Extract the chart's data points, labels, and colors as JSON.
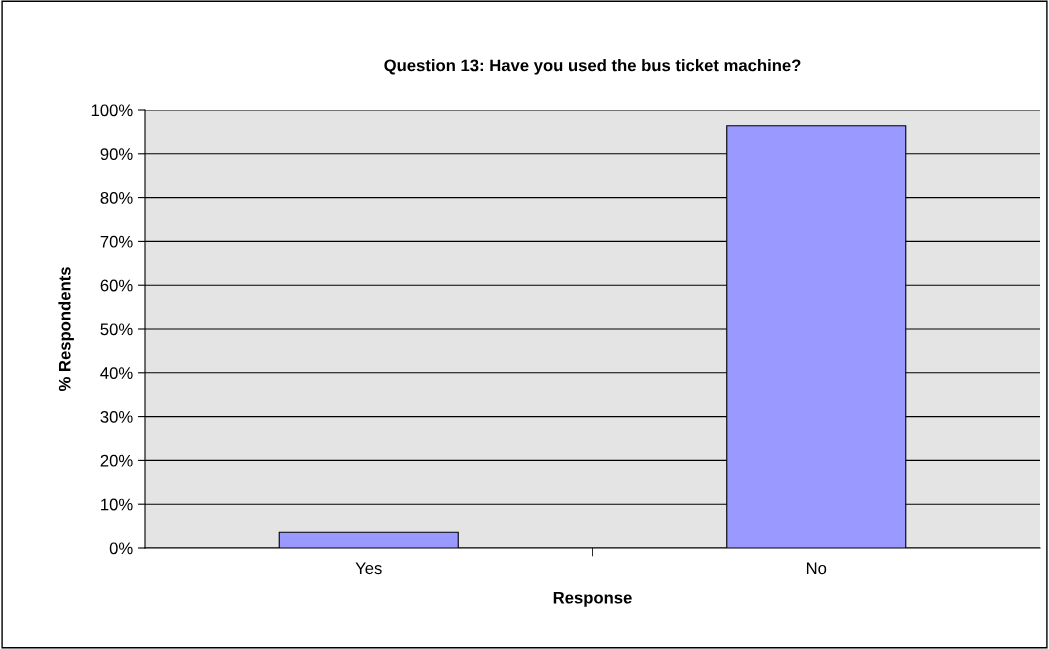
{
  "chart_data": {
    "type": "bar",
    "title": "Question 13: Have you used the bus ticket machine?",
    "xlabel": "Response",
    "ylabel": "% Respondents",
    "categories": [
      "Yes",
      "No"
    ],
    "values": [
      3.6,
      96.4
    ],
    "color": "#9999ff",
    "ylim": [
      0,
      100
    ],
    "yticks": [
      {
        "value": 0,
        "label": "0%"
      },
      {
        "value": 10,
        "label": "10%"
      },
      {
        "value": 20,
        "label": "20%"
      },
      {
        "value": 30,
        "label": "30%"
      },
      {
        "value": 40,
        "label": "40%"
      },
      {
        "value": 50,
        "label": "50%"
      },
      {
        "value": 60,
        "label": "60%"
      },
      {
        "value": 70,
        "label": "70%"
      },
      {
        "value": 80,
        "label": "80%"
      },
      {
        "value": 90,
        "label": "90%"
      },
      {
        "value": 100,
        "label": "100%"
      }
    ],
    "grid": "y",
    "legend": false
  }
}
